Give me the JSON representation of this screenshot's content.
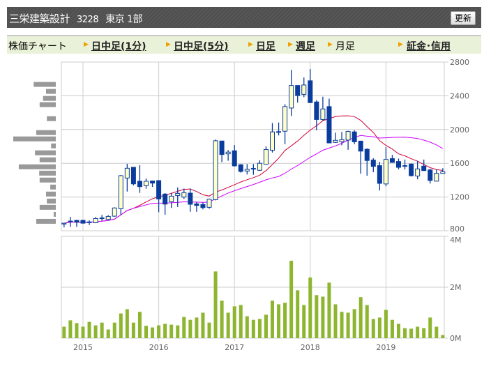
{
  "header": {
    "company": "三栄建築設計",
    "code": "3228",
    "market": "東京 1部",
    "refresh_label": "更新"
  },
  "nav": {
    "title": "株価チャート",
    "items": [
      {
        "label": "日中足(1分)",
        "link": true
      },
      {
        "label": "日中足(5分)",
        "link": true
      },
      {
        "label": "日足",
        "link": true
      },
      {
        "label": "週足",
        "link": true
      },
      {
        "label": "月足",
        "link": false
      },
      {
        "label": "証金･信用",
        "link": true
      }
    ]
  },
  "chart_data": {
    "type": "candlestick",
    "interval": "monthly",
    "price_axis": {
      "ticks": [
        "2800",
        "2400",
        "2000",
        "1600",
        "1200",
        "800"
      ],
      "range": [
        800,
        2800
      ]
    },
    "volume_axis": {
      "ticks": [
        "4M",
        "2M",
        "0M"
      ],
      "range": [
        0,
        4
      ]
    },
    "year_labels": [
      "2015",
      "2016",
      "2017",
      "2018",
      "2019"
    ],
    "colors": {
      "up_fill": "#ffffc8",
      "down_fill": "#0a3c9e",
      "candle_stroke": "#0a3c9e",
      "ma_short": "#d4003a",
      "ma_long": "#cc00ff",
      "volume": "#8db52f",
      "volume_profile": "#999999",
      "grid": "#cccccc"
    },
    "moving_averages": [
      {
        "period": 12,
        "color": "#d4003a"
      },
      {
        "period": 24,
        "color": "#cc00ff"
      }
    ],
    "months": [
      "2014-10",
      "2014-11",
      "2014-12",
      "2015-01",
      "2015-02",
      "2015-03",
      "2015-04",
      "2015-05",
      "2015-06",
      "2015-07",
      "2015-08",
      "2015-09",
      "2015-10",
      "2015-11",
      "2015-12",
      "2016-01",
      "2016-02",
      "2016-03",
      "2016-04",
      "2016-05",
      "2016-06",
      "2016-07",
      "2016-08",
      "2016-09",
      "2016-10",
      "2016-11",
      "2016-12",
      "2017-01",
      "2017-02",
      "2017-03",
      "2017-04",
      "2017-05",
      "2017-06",
      "2017-07",
      "2017-08",
      "2017-09",
      "2017-10",
      "2017-11",
      "2017-12",
      "2018-01",
      "2018-02",
      "2018-03",
      "2018-04",
      "2018-05",
      "2018-06",
      "2018-07",
      "2018-08",
      "2018-09",
      "2018-10",
      "2018-11",
      "2018-12",
      "2019-01",
      "2019-02",
      "2019-03",
      "2019-04",
      "2019-05",
      "2019-06",
      "2019-07",
      "2019-08",
      "2019-09",
      "2019-10"
    ],
    "ohlc": [
      [
        880,
        893,
        840,
        890
      ],
      [
        910,
        965,
        846,
        915
      ],
      [
        923,
        929,
        846,
        902
      ],
      [
        923,
        929,
        885,
        890
      ],
      [
        903,
        923,
        868,
        905
      ],
      [
        895,
        962,
        890,
        945
      ],
      [
        948,
        987,
        918,
        952
      ],
      [
        934,
        984,
        929,
        970
      ],
      [
        973,
        1078,
        967,
        1070
      ],
      [
        1061,
        1461,
        984,
        1453
      ],
      [
        1425,
        1594,
        1265,
        1541
      ],
      [
        1552,
        1552,
        1337,
        1356
      ],
      [
        1387,
        1577,
        1249,
        1323
      ],
      [
        1334,
        1420,
        1298,
        1387
      ],
      [
        1390,
        1395,
        1320,
        1365
      ],
      [
        1395,
        1395,
        1020,
        1177
      ],
      [
        1235,
        1246,
        990,
        1116
      ],
      [
        1144,
        1249,
        1070,
        1210
      ],
      [
        1218,
        1312,
        1083,
        1243
      ],
      [
        1199,
        1301,
        1177,
        1252
      ],
      [
        1246,
        1301,
        1025,
        1114
      ],
      [
        1119,
        1144,
        1025,
        1100
      ],
      [
        1111,
        1133,
        1053,
        1075
      ],
      [
        1078,
        1180,
        1061,
        1174
      ],
      [
        1169,
        1881,
        1160,
        1867
      ],
      [
        1864,
        1864,
        1613,
        1704
      ],
      [
        1712,
        1757,
        1630,
        1732
      ],
      [
        1748,
        1815,
        1563,
        1569
      ],
      [
        1583,
        1591,
        1489,
        1503
      ],
      [
        1508,
        1591,
        1467,
        1528
      ],
      [
        1536,
        1591,
        1464,
        1539
      ],
      [
        1517,
        1635,
        1511,
        1600
      ],
      [
        1588,
        1800,
        1585,
        1763
      ],
      [
        1755,
        2077,
        1727,
        1972
      ],
      [
        1970,
        2083,
        1930,
        1975
      ],
      [
        1980,
        2300,
        1827,
        2272
      ],
      [
        2255,
        2708,
        2160,
        2522
      ],
      [
        2522,
        2522,
        2319,
        2403
      ],
      [
        2417,
        2617,
        2383,
        2528
      ],
      [
        2578,
        2717,
        2319,
        2319
      ],
      [
        2327,
        2347,
        1991,
        2119
      ],
      [
        2119,
        2389,
        2105,
        2244
      ],
      [
        2272,
        2366,
        1841,
        1841
      ],
      [
        1847,
        1963,
        1841,
        1872
      ],
      [
        1855,
        1972,
        1813,
        1880
      ],
      [
        1875,
        1986,
        1760,
        1977
      ],
      [
        1972,
        1991,
        1827,
        1855
      ],
      [
        1863,
        1863,
        1477,
        1744
      ],
      [
        1766,
        1777,
        1452,
        1633
      ],
      [
        1638,
        1660,
        1494,
        1563
      ],
      [
        1572,
        1616,
        1277,
        1362
      ],
      [
        1355,
        1791,
        1327,
        1646
      ],
      [
        1655,
        1699,
        1610,
        1610
      ],
      [
        1621,
        1655,
        1527,
        1552
      ],
      [
        1572,
        1644,
        1527,
        1569
      ],
      [
        1591,
        1597,
        1444,
        1452
      ],
      [
        1449,
        1630,
        1410,
        1533
      ],
      [
        1566,
        1644,
        1513,
        1513
      ],
      [
        1521,
        1535,
        1360,
        1396
      ],
      [
        1388,
        1527,
        1388,
        1480
      ],
      [
        1480,
        1541,
        1480,
        1499
      ]
    ],
    "volume_millions": [
      0.45,
      0.7,
      0.59,
      0.45,
      0.64,
      0.5,
      0.61,
      0.34,
      0.61,
      0.97,
      1.14,
      0.61,
      1.03,
      0.48,
      0.42,
      0.5,
      0.56,
      0.53,
      0.5,
      0.83,
      0.72,
      0.81,
      1.0,
      0.61,
      2.62,
      1.47,
      1.0,
      1.25,
      1.3,
      0.86,
      0.72,
      0.75,
      0.92,
      1.47,
      1.33,
      1.39,
      3.04,
      1.88,
      1.3,
      2.38,
      1.69,
      1.63,
      2.18,
      1.33,
      1.03,
      1.0,
      1.14,
      1.61,
      1.3,
      0.75,
      0.81,
      1.11,
      0.72,
      0.56,
      0.39,
      0.37,
      0.45,
      0.39,
      0.81,
      0.45,
      0.12
    ],
    "volume_by_price": {
      "price_levels": [
        2535,
        2452,
        2369,
        2295,
        2129,
        1964,
        1889,
        1806,
        1724,
        1641,
        1558,
        1483,
        1401,
        1318,
        1235,
        1152,
        1078,
        995,
        912
      ],
      "relative_volume": [
        0.52,
        0.23,
        0.3,
        0.38,
        0.21,
        0.46,
        1.0,
        0.11,
        0.49,
        0.38,
        0.87,
        0.39,
        0.38,
        0.13,
        0.23,
        0.21,
        0.38,
        0.05,
        0.46
      ]
    }
  }
}
